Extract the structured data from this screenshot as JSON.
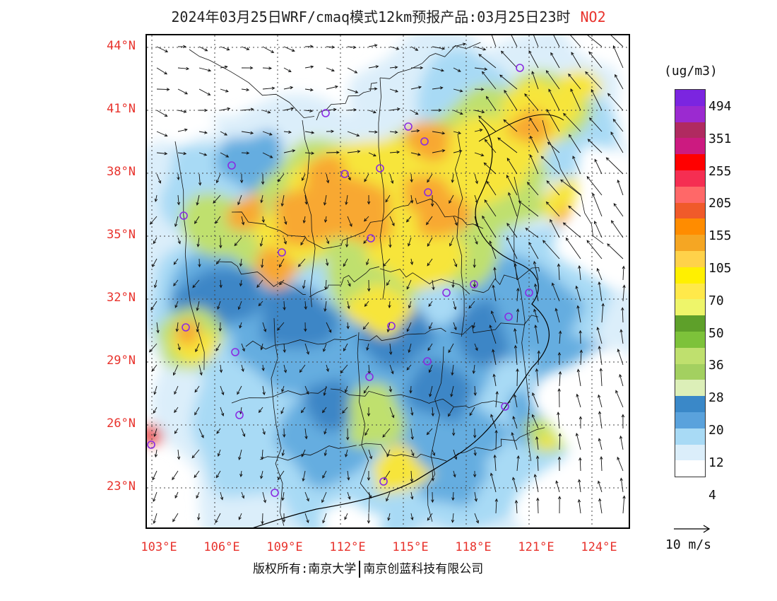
{
  "title": {
    "main": "2024年03月25日WRF/cmaq模式12km预报产品:03月25日23时",
    "species": "NO2"
  },
  "map": {
    "lat_labels": [
      "44°N",
      "41°N",
      "38°N",
      "35°N",
      "32°N",
      "29°N",
      "26°N",
      "23°N"
    ],
    "lon_labels": [
      "103°E",
      "106°E",
      "109°E",
      "112°E",
      "115°E",
      "118°E",
      "121°E",
      "124°E"
    ],
    "field_colors": {
      "low": "#dbeefa",
      "light_blue": "#a8daf5",
      "mid_blue": "#65ade0",
      "dark_blue": "#3d86c6",
      "light_green": "#bfe06e",
      "yellow": "#f7e53a",
      "orange": "#f8a830",
      "red": "#e83c3c"
    },
    "grid_line_color": "#444444",
    "label_color": "#e8322c",
    "station_marker_color": "#8a2be2"
  },
  "legend": {
    "unit": "(ug/m3)",
    "colors": [
      "#7b25e0",
      "#9b2ad0",
      "#b02a60",
      "#cc1a80",
      "#ff0000",
      "#f52e52",
      "#ff6868",
      "#f05a2a",
      "#ff8c00",
      "#f5a623",
      "#ffd24a",
      "#fff000",
      "#ffe94a",
      "#eef56a",
      "#5ea02a",
      "#7dc23a",
      "#bfe06e",
      "#a3d060",
      "#dcefb8",
      "#3a88c8",
      "#5aa2dc",
      "#a8daf5",
      "#dbeefa",
      "#ffffff"
    ],
    "labels": [
      "494",
      "351",
      "255",
      "205",
      "155",
      "105",
      "70",
      "50",
      "36",
      "28",
      "20",
      "12",
      "4"
    ]
  },
  "wind_reference": "10 m/s",
  "copyright": {
    "left": "版权所有:南京大学",
    "right": "南京创蓝科技有限公司"
  }
}
